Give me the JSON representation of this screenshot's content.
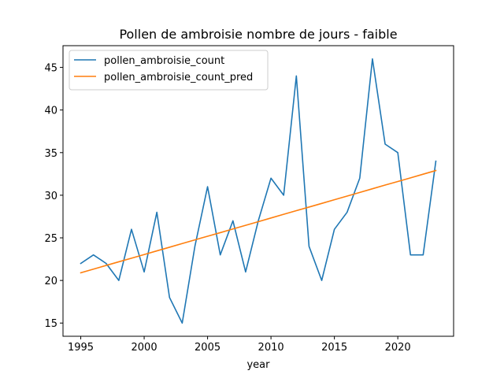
{
  "chart_data": {
    "type": "line",
    "title": "Pollen de ambroisie nombre de jours - faible",
    "xlabel": "year",
    "ylabel": "",
    "xlim": [
      1993.6,
      2024.4
    ],
    "ylim": [
      13.45,
      47.55
    ],
    "x_ticks": [
      1995,
      2000,
      2005,
      2010,
      2015,
      2020
    ],
    "y_ticks": [
      15,
      20,
      25,
      30,
      35,
      40,
      45
    ],
    "grid": false,
    "legend_position": "upper-left",
    "x": [
      1995,
      1996,
      1997,
      1998,
      1999,
      2000,
      2001,
      2002,
      2003,
      2004,
      2005,
      2006,
      2007,
      2008,
      2009,
      2010,
      2011,
      2012,
      2013,
      2014,
      2015,
      2016,
      2017,
      2018,
      2019,
      2020,
      2021,
      2022,
      2023
    ],
    "series": [
      {
        "name": "pollen_ambroisie_count",
        "color": "#1f77b4",
        "values": [
          22,
          23,
          22,
          20,
          26,
          21,
          28,
          18,
          15,
          24,
          31,
          23,
          27,
          21,
          27,
          32,
          30,
          44,
          24,
          20,
          26,
          28,
          32,
          46,
          36,
          35,
          23,
          23,
          34
        ]
      },
      {
        "name": "pollen_ambroisie_count_pred",
        "color": "#ff7f0e",
        "values": [
          20.9,
          21.33,
          21.76,
          22.19,
          22.61,
          23.04,
          23.47,
          23.9,
          24.33,
          24.76,
          25.19,
          25.61,
          26.04,
          26.47,
          26.9,
          27.33,
          27.76,
          28.19,
          28.61,
          29.04,
          29.47,
          29.9,
          30.33,
          30.76,
          31.19,
          31.61,
          32.04,
          32.47,
          32.9
        ]
      }
    ]
  }
}
